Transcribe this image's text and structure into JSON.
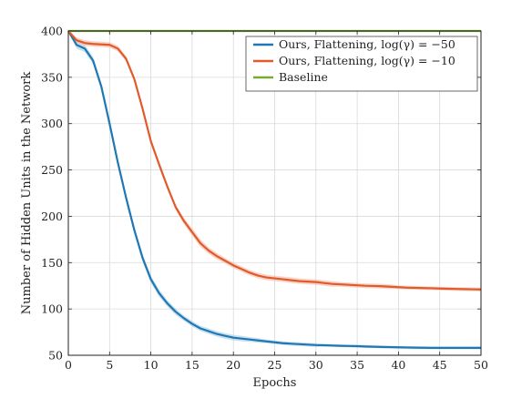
{
  "chart_data": {
    "type": "line",
    "title": "",
    "xlabel": "Epochs",
    "ylabel": "Number of Hidden Units in the Network",
    "xlim": [
      0,
      50
    ],
    "ylim": [
      50,
      400
    ],
    "xticks": [
      0,
      5,
      10,
      15,
      20,
      25,
      30,
      35,
      40,
      45,
      50
    ],
    "yticks": [
      50,
      100,
      150,
      200,
      250,
      300,
      350,
      400
    ],
    "grid": true,
    "legend_position": "top-right",
    "series": [
      {
        "name": "Ours, Flattening, log(γ) = −50",
        "color": "#1f77b4",
        "band_color": "#9ecae1",
        "x": [
          0,
          1,
          2,
          3,
          4,
          5,
          6,
          7,
          8,
          9,
          10,
          11,
          12,
          13,
          14,
          15,
          16,
          17,
          18,
          19,
          20,
          21,
          22,
          23,
          24,
          25,
          26,
          27,
          28,
          29,
          30,
          31,
          32,
          33,
          34,
          35,
          36,
          37,
          38,
          39,
          40,
          41,
          42,
          43,
          44,
          45,
          46,
          47,
          48,
          49,
          50
        ],
        "y": [
          400,
          385,
          381,
          368,
          340,
          300,
          258,
          220,
          185,
          155,
          132,
          117,
          106,
          97,
          90,
          84,
          79,
          76,
          73,
          71,
          69,
          68,
          67,
          66,
          65,
          64,
          63,
          62.5,
          62,
          61.5,
          61,
          60.8,
          60.5,
          60.2,
          60,
          59.8,
          59.5,
          59.2,
          59,
          58.8,
          58.6,
          58.4,
          58.2,
          58.1,
          58,
          58,
          58,
          58,
          58,
          58,
          58
        ],
        "spread": [
          0,
          4,
          4,
          4,
          4,
          4,
          4,
          4,
          4,
          4,
          4,
          4,
          3.5,
          3.5,
          3,
          3,
          3,
          3,
          3,
          3,
          3,
          3,
          2.5,
          2.5,
          2,
          2,
          2,
          2,
          2,
          2,
          2,
          1.5,
          1.5,
          1.5,
          1.5,
          1.5,
          1.5,
          1.5,
          1.5,
          1.5,
          1.5,
          1.5,
          1.5,
          1.5,
          1.5,
          1.5,
          1.5,
          1.5,
          1.5,
          1.5,
          1.5
        ]
      },
      {
        "name": "Ours, Flattening, log(γ) = −10",
        "color": "#e05a2b",
        "band_color": "#f4b39a",
        "x": [
          0,
          1,
          2,
          3,
          4,
          5,
          6,
          7,
          8,
          9,
          10,
          11,
          12,
          13,
          14,
          15,
          16,
          17,
          18,
          19,
          20,
          21,
          22,
          23,
          24,
          25,
          26,
          27,
          28,
          29,
          30,
          31,
          32,
          33,
          34,
          35,
          36,
          37,
          38,
          39,
          40,
          41,
          42,
          43,
          44,
          45,
          46,
          47,
          48,
          49,
          50
        ],
        "y": [
          400,
          390,
          387,
          386,
          385.5,
          385,
          381,
          370,
          348,
          316,
          281,
          256,
          232,
          210,
          195,
          183,
          171,
          163,
          157,
          152,
          147,
          143,
          139,
          136,
          134,
          133,
          132,
          131,
          130,
          129.5,
          129,
          128,
          127,
          126.5,
          126,
          125.5,
          125,
          124.8,
          124.5,
          124,
          123.5,
          123,
          122.8,
          122.5,
          122.3,
          122,
          121.8,
          121.6,
          121.4,
          121.2,
          121
        ],
        "spread": [
          0,
          3,
          3,
          3,
          3,
          3,
          3,
          3,
          3,
          3,
          3,
          3,
          3,
          3,
          3.5,
          4,
          4,
          3.5,
          3.5,
          3,
          3,
          3,
          3,
          3,
          3,
          3,
          3,
          3,
          3,
          3,
          3,
          3,
          3,
          2.5,
          2.5,
          2.5,
          2.5,
          2.5,
          2.5,
          2.5,
          2,
          2,
          2,
          2,
          2,
          2,
          2,
          2,
          2,
          2,
          2
        ]
      },
      {
        "name": "Baseline",
        "color": "#77ac30",
        "band_color": "",
        "x": [
          0,
          50
        ],
        "y": [
          400,
          400
        ],
        "spread": [
          0,
          0
        ]
      }
    ]
  }
}
